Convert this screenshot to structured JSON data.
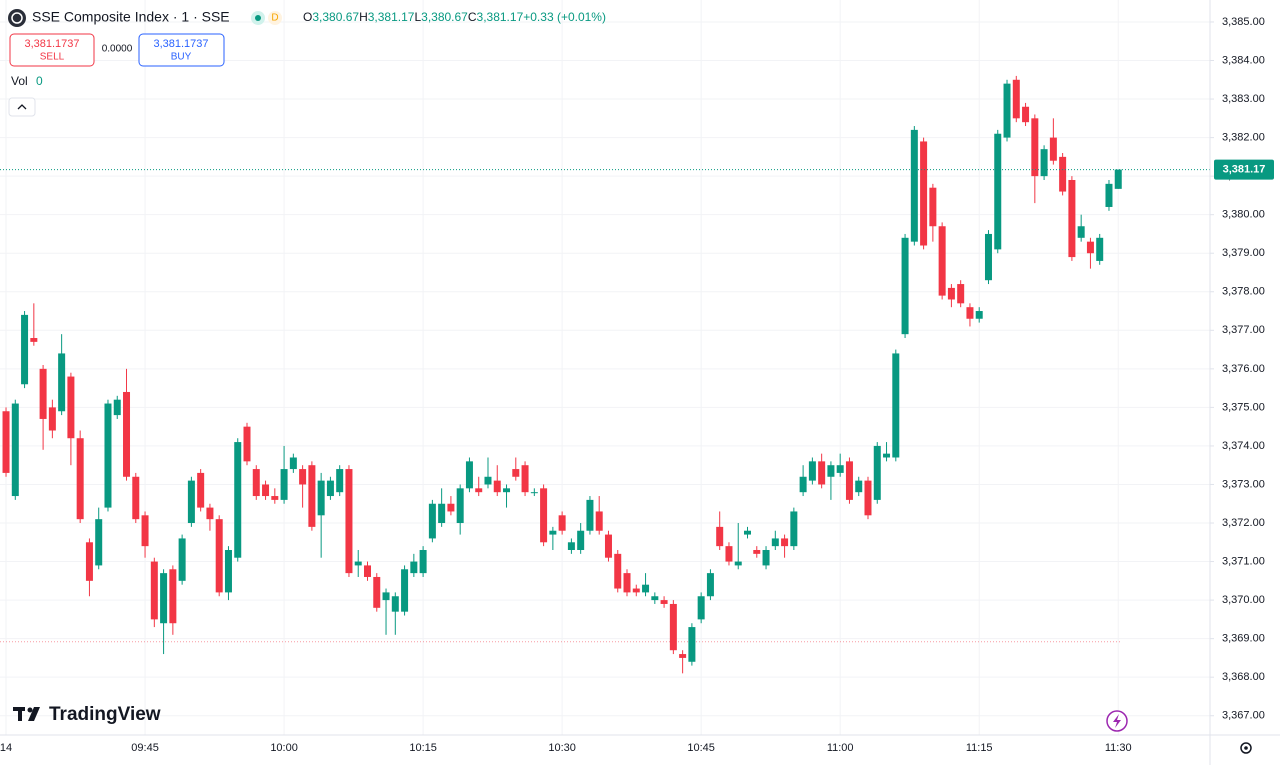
{
  "chart_data": {
    "type": "candlestick",
    "title": "SSE Composite Index · 1 · SSE",
    "interval_badge": "D",
    "ohlc_header": [
      {
        "label": "O",
        "value": "3,380.67"
      },
      {
        "label": "H",
        "value": "3,381.17"
      },
      {
        "label": "L",
        "value": "3,380.67"
      },
      {
        "label": "C",
        "value": "3,381.17"
      }
    ],
    "change": "+0.33 (+0.01%)",
    "trade": {
      "sell_price": "3,381.1737",
      "sell_label": "SELL",
      "spread": "0.0000",
      "buy_price": "3,381.1737",
      "buy_label": "BUY"
    },
    "volume": {
      "label": "Vol",
      "value": 0
    },
    "branding": "TradingView",
    "up_color": "#089981",
    "down_color": "#f23645",
    "grid": true,
    "last_price": {
      "value": 3381.17,
      "label": "3,381.17"
    },
    "reference_line": 3368.92,
    "xlim": [
      -0.65,
      129.9
    ],
    "ylim": [
      3366.5,
      3385.57
    ],
    "xticks": [
      {
        "value": 0,
        "label": "14"
      },
      {
        "value": 15,
        "label": "09:45"
      },
      {
        "value": 30,
        "label": "10:00"
      },
      {
        "value": 45,
        "label": "10:15"
      },
      {
        "value": 60,
        "label": "10:30"
      },
      {
        "value": 75,
        "label": "10:45"
      },
      {
        "value": 90,
        "label": "11:00"
      },
      {
        "value": 105,
        "label": "11:15"
      },
      {
        "value": 120,
        "label": "11:30"
      }
    ],
    "yticks": [
      {
        "value": 3367,
        "label": "3,367.00"
      },
      {
        "value": 3368,
        "label": "3,368.00"
      },
      {
        "value": 3369,
        "label": "3,369.00"
      },
      {
        "value": 3370,
        "label": "3,370.00"
      },
      {
        "value": 3371,
        "label": "3,371.00"
      },
      {
        "value": 3372,
        "label": "3,372.00"
      },
      {
        "value": 3373,
        "label": "3,373.00"
      },
      {
        "value": 3374,
        "label": "3,374.00"
      },
      {
        "value": 3375,
        "label": "3,375.00"
      },
      {
        "value": 3376,
        "label": "3,376.00"
      },
      {
        "value": 3377,
        "label": "3,377.00"
      },
      {
        "value": 3378,
        "label": "3,378.00"
      },
      {
        "value": 3379,
        "label": "3,379.00"
      },
      {
        "value": 3380,
        "label": "3,380.00"
      },
      {
        "value": 3381,
        "label": "3,381.00"
      },
      {
        "value": 3382,
        "label": "3,382.00"
      },
      {
        "value": 3383,
        "label": "3,383.00"
      },
      {
        "value": 3384,
        "label": "3,384.00"
      },
      {
        "value": 3385,
        "label": "3,385.00"
      }
    ],
    "series": [
      {
        "open": [
          3374.9,
          3372.7,
          3375.6,
          3376.8,
          3376.0,
          3375.0,
          3374.9,
          3375.8,
          3374.2,
          3371.5,
          3370.9,
          3372.4,
          3374.8,
          3375.4,
          3373.2,
          3372.2,
          3371.0,
          3369.4,
          3370.8,
          3370.5,
          3372.0,
          3373.3,
          3372.4,
          3372.1,
          3370.2,
          3371.1,
          3374.5,
          3373.4,
          3373.0,
          3372.7,
          3372.6,
          3373.4,
          3373.4,
          3373.5,
          3372.2,
          3372.7,
          3372.8,
          3373.4,
          3370.9,
          3370.9,
          3370.6,
          3370.0,
          3369.7,
          3369.7,
          3370.7,
          3370.7,
          3371.6,
          3372.0,
          3372.5,
          3372.0,
          3372.9,
          3372.9,
          3373.0,
          3373.1,
          3372.8,
          3373.4,
          3373.5,
          3372.8,
          3372.9,
          3371.7,
          3372.2,
          3371.3,
          3371.3,
          3371.8,
          3372.3,
          3371.7,
          3371.2,
          3370.7,
          3370.3,
          3370.2,
          3370.0,
          3370.0,
          3369.9,
          3368.6,
          3368.4,
          3369.5,
          3370.1,
          3371.9,
          3371.4,
          3370.9,
          3371.7,
          3371.3,
          3370.9,
          3371.4,
          3371.6,
          3371.4,
          3372.8,
          3373.1,
          3373.6,
          3373.2,
          3373.3,
          3373.6,
          3372.8,
          3373.1,
          3372.6,
          3373.7,
          3373.7,
          3376.9,
          3379.3,
          3381.9,
          3380.7,
          3379.7,
          3378.1,
          3378.2,
          3377.6,
          3377.3,
          3378.3,
          3379.1,
          3382.0,
          3383.5,
          3382.8,
          3382.5,
          3381.0,
          3382.0,
          3381.5,
          3380.9,
          3379.4,
          3379.3,
          3378.8,
          3380.2,
          3380.67
        ],
        "high": [
          3375.0,
          3375.2,
          3377.5,
          3377.7,
          3376.1,
          3375.2,
          3376.9,
          3375.9,
          3374.4,
          3371.6,
          3372.4,
          3375.2,
          3375.3,
          3376.0,
          3373.3,
          3372.3,
          3371.1,
          3370.8,
          3370.9,
          3371.7,
          3373.2,
          3373.4,
          3372.5,
          3372.2,
          3371.4,
          3374.2,
          3374.6,
          3373.5,
          3373.1,
          3372.9,
          3374.0,
          3373.8,
          3373.5,
          3373.6,
          3373.3,
          3373.2,
          3373.5,
          3373.5,
          3371.3,
          3371.0,
          3370.7,
          3370.3,
          3370.2,
          3370.9,
          3371.2,
          3371.4,
          3372.6,
          3372.9,
          3372.7,
          3373.0,
          3373.7,
          3373.2,
          3373.7,
          3373.5,
          3373.0,
          3373.7,
          3373.6,
          3372.9,
          3373.0,
          3371.9,
          3372.3,
          3371.6,
          3372.0,
          3372.7,
          3372.7,
          3371.8,
          3371.3,
          3370.8,
          3370.4,
          3370.7,
          3370.2,
          3370.1,
          3370.0,
          3368.7,
          3369.4,
          3370.2,
          3370.8,
          3372.3,
          3371.5,
          3372.0,
          3371.9,
          3371.4,
          3371.4,
          3371.8,
          3371.7,
          3372.4,
          3373.5,
          3373.7,
          3373.8,
          3373.6,
          3373.8,
          3373.7,
          3373.2,
          3373.2,
          3374.1,
          3374.1,
          3376.5,
          3379.5,
          3382.3,
          3382.0,
          3380.8,
          3379.8,
          3378.2,
          3378.3,
          3377.7,
          3377.6,
          3379.6,
          3382.2,
          3383.5,
          3383.6,
          3382.9,
          3382.6,
          3381.8,
          3382.5,
          3381.6,
          3381.0,
          3380.0,
          3379.4,
          3379.5,
          3380.9,
          3381.17
        ],
        "low": [
          3373.2,
          3372.6,
          3375.5,
          3376.6,
          3373.9,
          3374.2,
          3374.8,
          3373.5,
          3372.0,
          3370.1,
          3370.8,
          3372.3,
          3374.7,
          3373.1,
          3372.0,
          3371.1,
          3369.3,
          3368.6,
          3369.1,
          3370.4,
          3371.9,
          3372.3,
          3371.8,
          3370.1,
          3370.0,
          3371.0,
          3373.5,
          3372.6,
          3372.6,
          3372.5,
          3372.5,
          3373.3,
          3372.4,
          3371.8,
          3371.1,
          3372.6,
          3372.7,
          3370.6,
          3370.6,
          3370.5,
          3369.7,
          3369.1,
          3369.1,
          3369.6,
          3370.6,
          3370.6,
          3371.5,
          3371.9,
          3372.2,
          3371.7,
          3372.8,
          3372.7,
          3372.9,
          3372.7,
          3372.4,
          3373.1,
          3372.7,
          3372.7,
          3371.4,
          3371.3,
          3371.7,
          3371.2,
          3371.2,
          3371.7,
          3371.7,
          3371.0,
          3370.2,
          3370.1,
          3370.1,
          3370.1,
          3369.9,
          3369.8,
          3368.6,
          3368.1,
          3368.3,
          3369.4,
          3370.0,
          3371.3,
          3370.9,
          3370.8,
          3371.6,
          3371.1,
          3370.8,
          3371.3,
          3371.1,
          3371.3,
          3372.7,
          3373.0,
          3372.9,
          3372.6,
          3373.2,
          3372.5,
          3372.7,
          3372.1,
          3372.5,
          3373.6,
          3373.6,
          3376.8,
          3379.2,
          3379.1,
          3379.3,
          3377.8,
          3377.6,
          3377.6,
          3377.1,
          3377.2,
          3378.2,
          3379.0,
          3381.9,
          3382.4,
          3382.3,
          3380.3,
          3380.9,
          3381.3,
          3380.5,
          3378.8,
          3379.3,
          3378.6,
          3378.7,
          3380.1,
          3380.67
        ],
        "close": [
          3373.3,
          3375.1,
          3377.4,
          3376.7,
          3374.7,
          3374.4,
          3376.4,
          3374.2,
          3372.1,
          3370.5,
          3372.1,
          3375.1,
          3375.2,
          3373.2,
          3372.1,
          3371.4,
          3369.5,
          3370.7,
          3369.4,
          3371.6,
          3373.1,
          3372.4,
          3372.1,
          3370.2,
          3371.3,
          3374.1,
          3373.6,
          3372.7,
          3372.7,
          3372.6,
          3373.4,
          3373.7,
          3373.0,
          3371.9,
          3373.1,
          3373.1,
          3373.4,
          3370.7,
          3371.0,
          3370.6,
          3369.8,
          3370.2,
          3370.1,
          3370.8,
          3371.0,
          3371.3,
          3372.5,
          3372.5,
          3372.3,
          3372.9,
          3373.6,
          3372.8,
          3373.2,
          3372.8,
          3372.9,
          3373.2,
          3372.8,
          3372.8,
          3371.5,
          3371.8,
          3371.8,
          3371.5,
          3371.8,
          3372.6,
          3371.8,
          3371.1,
          3370.3,
          3370.2,
          3370.2,
          3370.4,
          3370.1,
          3369.9,
          3368.7,
          3368.5,
          3369.3,
          3370.1,
          3370.7,
          3371.4,
          3371.0,
          3371.0,
          3371.8,
          3371.2,
          3371.3,
          3371.6,
          3371.4,
          3372.3,
          3373.2,
          3373.6,
          3373.0,
          3373.5,
          3373.5,
          3372.6,
          3373.1,
          3372.2,
          3374.0,
          3373.8,
          3376.4,
          3379.4,
          3382.2,
          3379.2,
          3379.7,
          3377.9,
          3377.8,
          3377.7,
          3377.3,
          3377.5,
          3379.5,
          3382.1,
          3383.4,
          3382.5,
          3382.4,
          3381.0,
          3381.7,
          3381.4,
          3380.6,
          3378.9,
          3379.7,
          3379.0,
          3379.4,
          3380.8,
          3381.17
        ]
      }
    ]
  }
}
